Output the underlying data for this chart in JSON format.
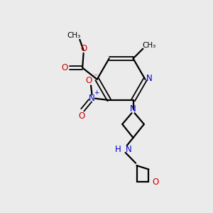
{
  "background_color": "#ebebeb",
  "bond_color": "#000000",
  "nitrogen_color": "#0000cc",
  "oxygen_color": "#cc0000",
  "figsize": [
    3.0,
    3.0
  ],
  "dpi": 100,
  "xlim": [
    0,
    10
  ],
  "ylim": [
    0,
    10
  ]
}
